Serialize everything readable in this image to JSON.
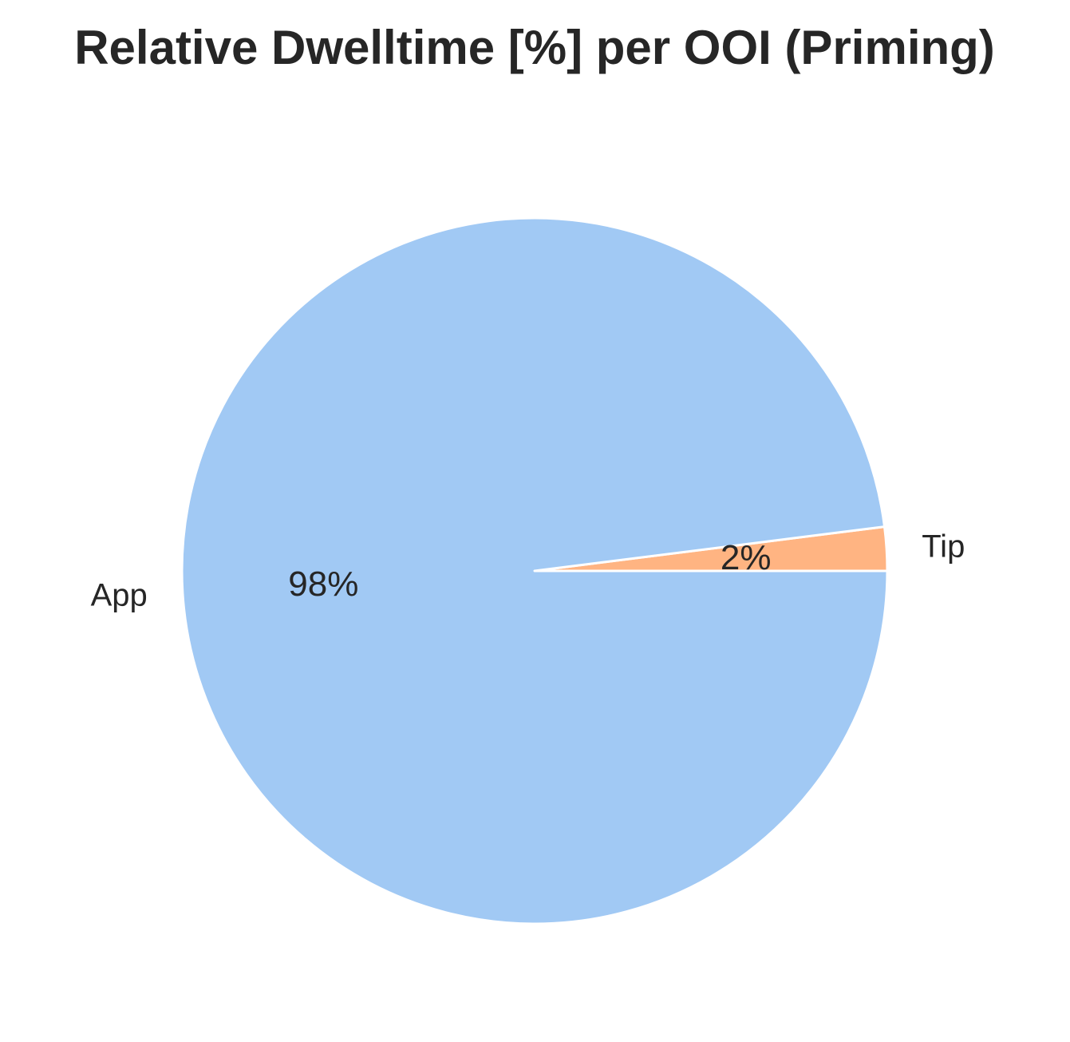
{
  "chart_data": {
    "type": "pie",
    "title": "Relative Dwelltime [%] per OOI (Priming)",
    "slices": [
      {
        "label": "Tip",
        "value": 2,
        "pct_label": "2%",
        "color": "#FFB482"
      },
      {
        "label": "App",
        "value": 98,
        "pct_label": "98%",
        "color": "#A1C9F4"
      }
    ],
    "start_angle_deg": 0,
    "direction": "counterclockwise",
    "wedge_edge_color": "#ffffff",
    "legend": "none"
  }
}
